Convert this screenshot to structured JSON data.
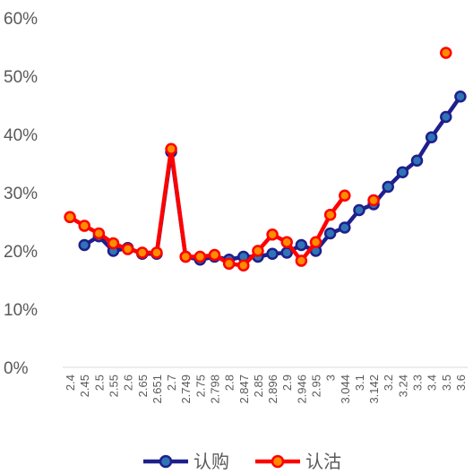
{
  "chart_data": {
    "type": "line",
    "categories": [
      "2.4",
      "2.45",
      "2.5",
      "2.55",
      "2.6",
      "2.65",
      "2.651",
      "2.7",
      "2.749",
      "2.75",
      "2.798",
      "2.8",
      "2.847",
      "2.85",
      "2.896",
      "2.9",
      "2.946",
      "2.95",
      "3",
      "3.044",
      "3.1",
      "3.142",
      "3.2",
      "3.24",
      "3.3",
      "3.4",
      "3.5",
      "3.6"
    ],
    "ylim": [
      0,
      0.6
    ],
    "yticks": [
      "0%",
      "10%",
      "20%",
      "30%",
      "40%",
      "50%",
      "60%"
    ],
    "grid": false,
    "legend_position": "bottom",
    "series": [
      {
        "name": "认购",
        "color": "#1F1F8C",
        "marker_fill": "#2E75B6",
        "values": [
          null,
          0.21,
          0.225,
          0.2,
          0.205,
          0.195,
          0.195,
          0.37,
          0.19,
          0.185,
          0.19,
          0.185,
          0.19,
          0.19,
          0.195,
          0.197,
          0.21,
          0.2,
          0.23,
          0.24,
          0.27,
          0.28,
          0.31,
          0.335,
          0.355,
          0.395,
          0.43,
          0.465
        ]
      },
      {
        "name": "认沽",
        "color": "#FF0000",
        "marker_fill": "#FF8C00",
        "values": [
          0.258,
          0.243,
          0.23,
          0.213,
          0.203,
          0.197,
          0.197,
          0.375,
          0.19,
          0.19,
          0.193,
          0.178,
          0.175,
          0.2,
          0.228,
          0.215,
          0.183,
          0.215,
          0.262,
          0.295,
          null,
          0.287,
          null,
          null,
          null,
          null,
          0.54,
          null
        ]
      }
    ]
  }
}
